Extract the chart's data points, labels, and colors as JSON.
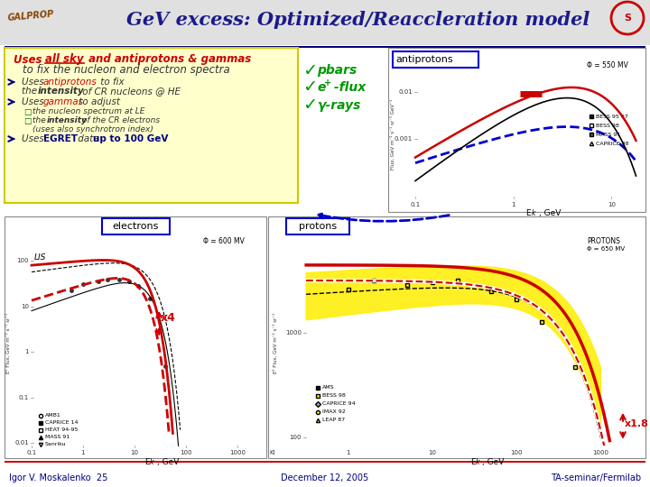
{
  "title": "GeV excess: Optimized/Reaccleration model",
  "bg_color": "#ffffff",
  "title_color": "#1a1a8c",
  "footer_left": "Igor V. Moskalenko  25",
  "footer_center": "December 12, 2005",
  "footer_right": "TA-seminar/Fermilab",
  "header_bg": "#d8d8d8",
  "yellow_box_bg": "#ffffcc",
  "yellow_box_border": "#cccc00",
  "check_color": "#009900",
  "red_color": "#cc0000",
  "blue_color": "#000080",
  "label_antiprotons": "antiprotons",
  "label_electrons": "electrons",
  "label_protons": "protons",
  "footer_line_color": "#cc0000",
  "title_line_color": "#000080"
}
